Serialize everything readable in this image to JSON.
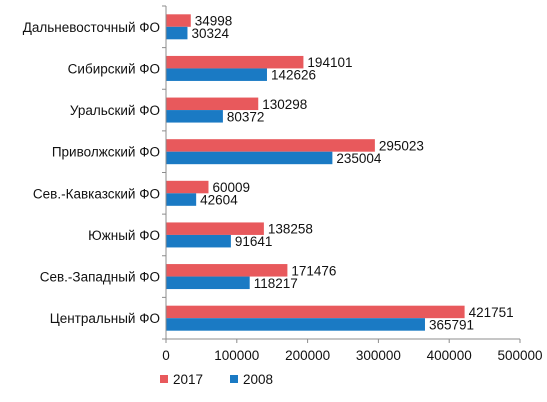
{
  "chart_data": {
    "type": "bar",
    "orientation": "horizontal",
    "categories": [
      "Дальневосточный ФО",
      "Сибирский ФО",
      "Уральский ФО",
      "Приволжский ФО",
      "Сев.-Кавказский ФО",
      "Южный  ФО",
      "Сев.-Западный ФО",
      "Центральный ФО"
    ],
    "series": [
      {
        "name": "2017",
        "color": "#e8595c",
        "values": [
          34998,
          194101,
          130298,
          295023,
          60009,
          138258,
          171476,
          421751
        ]
      },
      {
        "name": "2008",
        "color": "#1a7ac4",
        "values": [
          30324,
          142626,
          80372,
          235004,
          42604,
          91641,
          118217,
          365791
        ]
      }
    ],
    "xlim": [
      0,
      500000
    ],
    "xticks": [
      0,
      100000,
      200000,
      300000,
      400000,
      500000
    ],
    "xtick_labels": [
      "0",
      "100000",
      "200000",
      "300000",
      "400000",
      "500000"
    ],
    "title": "",
    "xlabel": "",
    "ylabel": "",
    "grid": false,
    "legend_position": "bottom-left"
  }
}
